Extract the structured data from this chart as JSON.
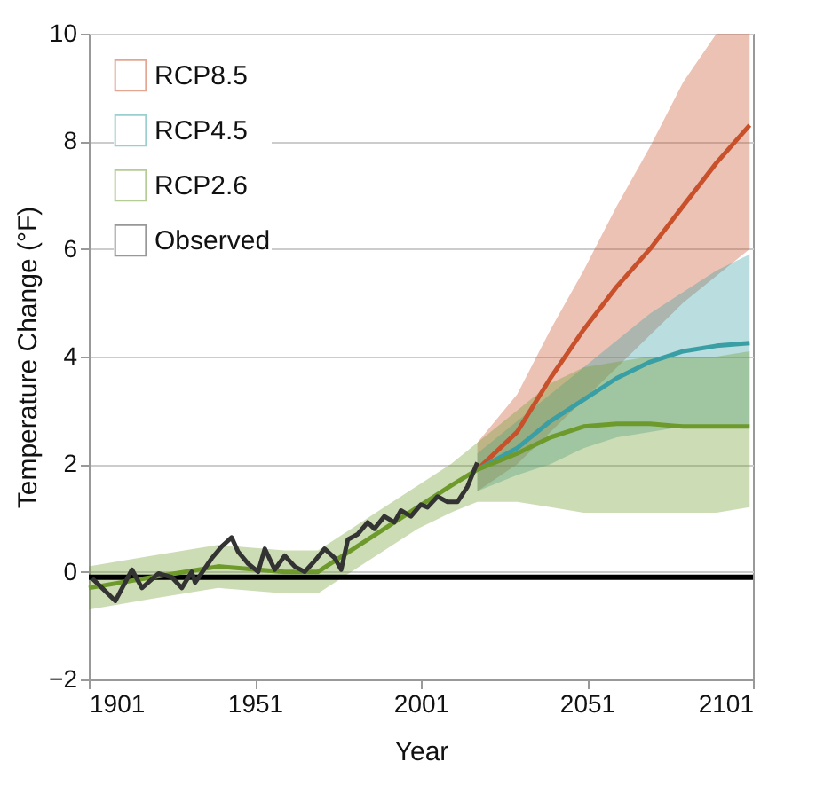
{
  "chart_data": {
    "type": "line",
    "xlabel": "Year",
    "ylabel": "Temperature Change (°F)",
    "xlim": [
      1901,
      2101
    ],
    "xticks": [
      1901,
      1951,
      2001,
      2051,
      2101
    ],
    "ylim": [
      -2,
      10
    ],
    "yticks": [
      -2,
      0,
      2,
      4,
      6,
      8,
      10
    ],
    "grid": "y",
    "legend": "top left",
    "marker": "none",
    "line_style": "solid",
    "series": [
      {
        "name": "RCP8.5",
        "color": "#c8502a",
        "x": [
          2018,
          2030,
          2040,
          2050,
          2060,
          2070,
          2080,
          2090,
          2100
        ],
        "values": [
          1.9,
          2.6,
          3.6,
          4.5,
          5.3,
          6.0,
          6.8,
          7.6,
          8.3
        ],
        "lower": [
          1.5,
          2.0,
          2.6,
          3.2,
          3.8,
          4.4,
          5.0,
          5.5,
          6.0
        ],
        "upper": [
          2.4,
          3.3,
          4.5,
          5.6,
          6.8,
          7.9,
          9.1,
          10,
          10
        ]
      },
      {
        "name": "RCP4.5",
        "color": "#3a9fa4",
        "x": [
          2018,
          2030,
          2040,
          2050,
          2060,
          2070,
          2080,
          2090,
          2100
        ],
        "values": [
          1.9,
          2.3,
          2.8,
          3.2,
          3.6,
          3.9,
          4.1,
          4.2,
          4.25
        ],
        "lower": [
          1.5,
          1.8,
          2.0,
          2.3,
          2.5,
          2.6,
          2.7,
          2.7,
          2.7
        ],
        "upper": [
          2.2,
          2.8,
          3.3,
          3.8,
          4.3,
          4.8,
          5.2,
          5.6,
          5.9
        ]
      },
      {
        "name": "RCP2.6",
        "color": "#6e9a2c",
        "x": [
          1901,
          1920,
          1940,
          1960,
          1970,
          1980,
          1990,
          2000,
          2010,
          2018,
          2030,
          2040,
          2050,
          2060,
          2070,
          2080,
          2090,
          2100
        ],
        "values": [
          -0.3,
          -0.1,
          0.1,
          0,
          0,
          0.4,
          0.8,
          1.2,
          1.6,
          1.9,
          2.2,
          2.5,
          2.7,
          2.75,
          2.75,
          2.7,
          2.7,
          2.7
        ],
        "lower": [
          -0.7,
          -0.5,
          -0.3,
          -0.4,
          -0.4,
          0,
          0.4,
          0.8,
          1.1,
          1.3,
          1.3,
          1.2,
          1.1,
          1.1,
          1.1,
          1.1,
          1.1,
          1.2
        ],
        "upper": [
          0.1,
          0.3,
          0.5,
          0.4,
          0.4,
          0.8,
          1.2,
          1.6,
          2.0,
          2.4,
          3.0,
          3.5,
          3.8,
          3.9,
          4.0,
          4.0,
          4.0,
          4.1
        ]
      },
      {
        "name": "Observed",
        "color": "#333333",
        "x": [
          1902,
          1905,
          1909,
          1914,
          1917,
          1922,
          1926,
          1929,
          1932,
          1933,
          1938,
          1941,
          1944,
          1946,
          1949,
          1952,
          1954,
          1957,
          1960,
          1963,
          1966,
          1969,
          1972,
          1975,
          1977,
          1979,
          1982,
          1985,
          1987,
          1990,
          1993,
          1995,
          1998,
          2001,
          2003,
          2006,
          2009,
          2012,
          2015,
          2018
        ],
        "values": [
          -0.12,
          -0.3,
          -0.54,
          0.04,
          -0.3,
          -0.03,
          -0.1,
          -0.3,
          0,
          -0.2,
          0.25,
          0.47,
          0.64,
          0.37,
          0.15,
          0,
          0.43,
          0.04,
          0.3,
          0.1,
          0,
          0.2,
          0.43,
          0.26,
          0.04,
          0.6,
          0.7,
          0.92,
          0.8,
          1.03,
          0.92,
          1.14,
          1.03,
          1.25,
          1.2,
          1.4,
          1.3,
          1.3,
          1.58,
          2.03
        ]
      }
    ],
    "ref_lines": [
      {
        "axis": "y",
        "value": -0.1,
        "color": "#000000"
      }
    ]
  }
}
